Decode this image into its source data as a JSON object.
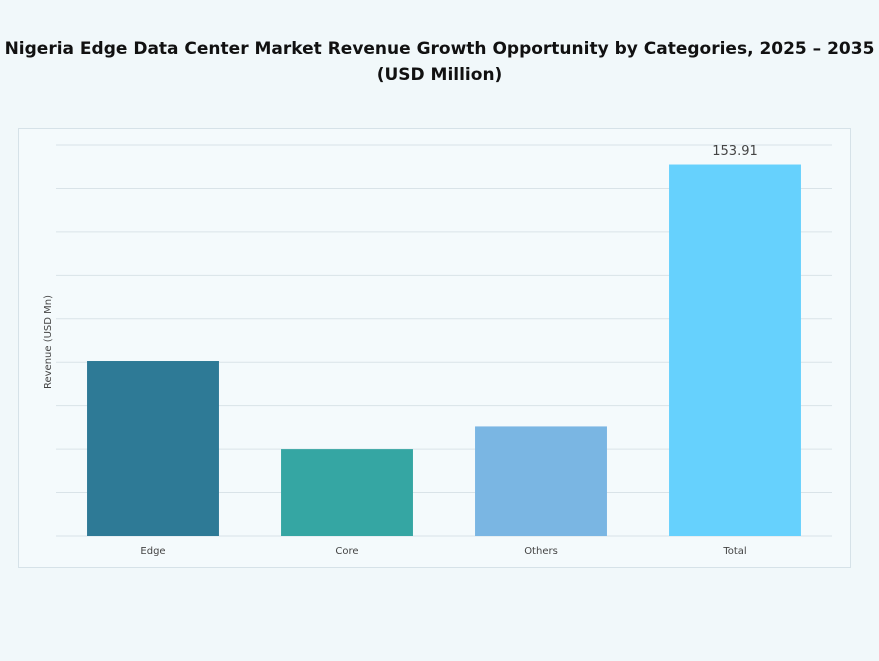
{
  "chart_data": {
    "type": "bar",
    "title": "Nigeria Edge Data Center Market Revenue Growth Opportunity by Categories, 2025 – 2035 (USD Million)",
    "y_label": "Revenue (USD Mn)",
    "categories": [
      "Edge",
      "Core",
      "Others",
      "Total"
    ],
    "values": [
      72.5,
      36,
      45.4,
      153.91
    ],
    "colors": [
      "#2e7a96",
      "#35a6a3",
      "#7ab6e3",
      "#66d1fd"
    ],
    "data_labels": [
      false,
      false,
      false,
      true
    ],
    "ylim": [
      0,
      162
    ],
    "yticks": [
      0,
      18,
      36,
      54,
      72,
      90,
      108,
      126,
      144,
      162
    ],
    "grid": true
  }
}
